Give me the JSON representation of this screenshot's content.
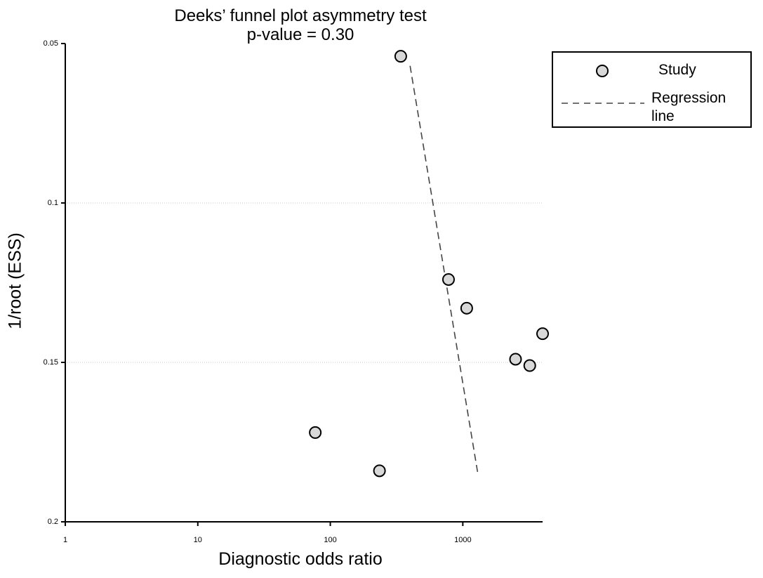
{
  "chart_data": {
    "type": "scatter",
    "title": "Deeks’ funnel plot asymmetry test",
    "subtitle": "p-value = 0.30",
    "xlabel": "Diagnostic odds ratio",
    "ylabel": "1/root (ESS)",
    "x_scale": "log",
    "xlim": [
      1,
      4000
    ],
    "ylim": [
      0.05,
      0.2
    ],
    "y_inverted": true,
    "x_ticks": [
      "1",
      "10",
      "100",
      "1000"
    ],
    "y_ticks": [
      "0.05",
      "0.1",
      "0.15",
      "0.2"
    ],
    "grid": "horizontal",
    "legend": {
      "position": "top-right",
      "entries": [
        "Study",
        "Regression\nline"
      ]
    },
    "series": [
      {
        "name": "Study",
        "type": "scatter",
        "points": [
          {
            "x": 340,
            "y": 0.054
          },
          {
            "x": 780,
            "y": 0.124
          },
          {
            "x": 1070,
            "y": 0.133
          },
          {
            "x": 4000,
            "y": 0.141
          },
          {
            "x": 2500,
            "y": 0.149
          },
          {
            "x": 3200,
            "y": 0.151
          },
          {
            "x": 77,
            "y": 0.172
          },
          {
            "x": 235,
            "y": 0.184
          }
        ]
      },
      {
        "name": "Regression line",
        "type": "line",
        "style": "dashed",
        "points": [
          {
            "x": 400,
            "y": 0.057
          },
          {
            "x": 1300,
            "y": 0.185
          }
        ]
      }
    ]
  }
}
